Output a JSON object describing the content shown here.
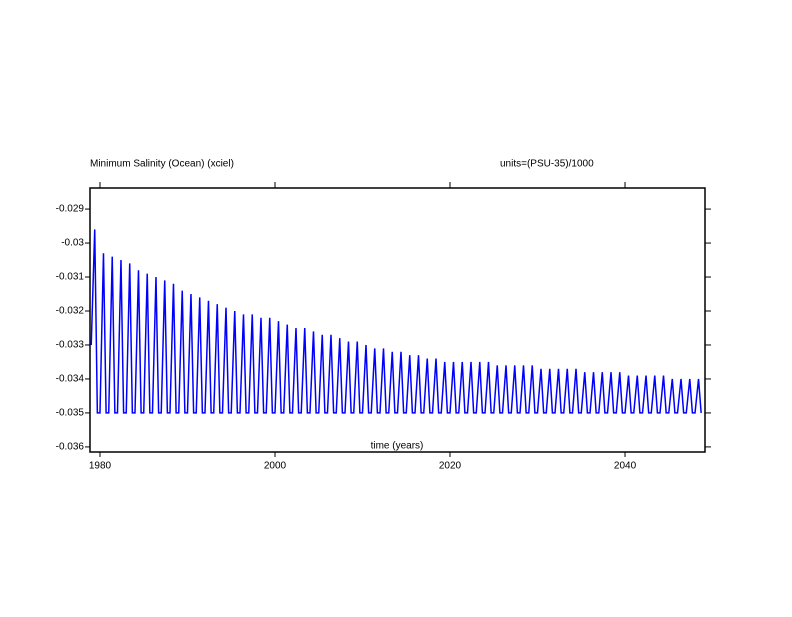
{
  "chart_data": {
    "type": "line",
    "title": "Minimum Salinity (Ocean) (xciel)",
    "subtitle": "units=(PSU-35)/1000",
    "x_label": "time (years)",
    "xlim": [
      1978.86,
      2049.14
    ],
    "xticks": [
      1980,
      2000,
      2020,
      2040
    ],
    "ylim": [
      -0.03615,
      -0.02838
    ],
    "yticks": [
      -0.029,
      -0.03,
      -0.031,
      -0.032,
      -0.033,
      -0.034,
      -0.035,
      -0.036
    ],
    "x": [
      1979,
      1979.4,
      1979.7,
      1980,
      1980.4,
      1980.7,
      1981,
      1981.4,
      1981.7,
      1982,
      1982.4,
      1982.7,
      1983,
      1983.4,
      1983.7,
      1984,
      1984.4,
      1984.7,
      1985,
      1985.4,
      1985.7,
      1986,
      1986.4,
      1986.7,
      1987,
      1987.4,
      1987.7,
      1988,
      1988.4,
      1988.7,
      1989,
      1989.4,
      1989.7,
      1990,
      1990.4,
      1990.7,
      1991,
      1991.4,
      1991.7,
      1992,
      1992.4,
      1992.7,
      1993,
      1993.4,
      1993.7,
      1994,
      1994.4,
      1994.7,
      1995,
      1995.4,
      1995.7,
      1996,
      1996.4,
      1996.7,
      1997,
      1997.4,
      1997.7,
      1998,
      1998.4,
      1998.7,
      1999,
      1999.4,
      1999.7,
      2000,
      2000.4,
      2000.7,
      2001,
      2001.4,
      2001.7,
      2002,
      2002.4,
      2002.7,
      2003,
      2003.4,
      2003.7,
      2004,
      2004.4,
      2004.7,
      2005,
      2005.4,
      2005.7,
      2006,
      2006.4,
      2006.7,
      2007,
      2007.4,
      2007.7,
      2008,
      2008.4,
      2008.7,
      2009,
      2009.4,
      2009.7,
      2010,
      2010.4,
      2010.7,
      2011,
      2011.4,
      2011.7,
      2012,
      2012.4,
      2012.7,
      2013,
      2013.4,
      2013.7,
      2014,
      2014.4,
      2014.7,
      2015,
      2015.4,
      2015.7,
      2016,
      2016.4,
      2016.7,
      2017,
      2017.4,
      2017.7,
      2018,
      2018.4,
      2018.7,
      2019,
      2019.4,
      2019.7,
      2020,
      2020.4,
      2020.7,
      2021,
      2021.4,
      2021.7,
      2022,
      2022.4,
      2022.7,
      2023,
      2023.4,
      2023.7,
      2024,
      2024.4,
      2024.7,
      2025,
      2025.4,
      2025.7,
      2026,
      2026.4,
      2026.7,
      2027,
      2027.4,
      2027.7,
      2028,
      2028.4,
      2028.7,
      2029,
      2029.4,
      2029.7,
      2030,
      2030.4,
      2030.7,
      2031,
      2031.4,
      2031.7,
      2032,
      2032.4,
      2032.7,
      2033,
      2033.4,
      2033.7,
      2034,
      2034.4,
      2034.7,
      2035,
      2035.4,
      2035.7,
      2036,
      2036.4,
      2036.7,
      2037,
      2037.4,
      2037.7,
      2038,
      2038.4,
      2038.7,
      2039,
      2039.4,
      2039.7,
      2040,
      2040.4,
      2040.7,
      2041,
      2041.4,
      2041.7,
      2042,
      2042.4,
      2042.7,
      2043,
      2043.4,
      2043.7,
      2044,
      2044.4,
      2044.7,
      2045,
      2045.4,
      2045.7,
      2046,
      2046.4,
      2046.7,
      2047,
      2047.4,
      2047.7,
      2048,
      2048.4,
      2048.7
    ],
    "series": [
      {
        "color": "#0000ff",
        "values": [
          -0.033,
          -0.0296,
          -0.035,
          -0.035,
          -0.0303,
          -0.035,
          -0.035,
          -0.0304,
          -0.035,
          -0.035,
          -0.0305,
          -0.035,
          -0.035,
          -0.0306,
          -0.035,
          -0.035,
          -0.0308,
          -0.035,
          -0.035,
          -0.0309,
          -0.035,
          -0.035,
          -0.031,
          -0.035,
          -0.035,
          -0.0311,
          -0.035,
          -0.035,
          -0.0312,
          -0.035,
          -0.035,
          -0.0314,
          -0.035,
          -0.035,
          -0.0315,
          -0.035,
          -0.035,
          -0.0316,
          -0.035,
          -0.035,
          -0.0317,
          -0.035,
          -0.035,
          -0.0318,
          -0.035,
          -0.035,
          -0.0319,
          -0.035,
          -0.035,
          -0.032,
          -0.035,
          -0.035,
          -0.0321,
          -0.035,
          -0.035,
          -0.0321,
          -0.035,
          -0.035,
          -0.0322,
          -0.035,
          -0.035,
          -0.0322,
          -0.035,
          -0.035,
          -0.0323,
          -0.035,
          -0.035,
          -0.0324,
          -0.035,
          -0.035,
          -0.0325,
          -0.035,
          -0.035,
          -0.0325,
          -0.035,
          -0.035,
          -0.0326,
          -0.035,
          -0.035,
          -0.0327,
          -0.035,
          -0.035,
          -0.0327,
          -0.035,
          -0.035,
          -0.0328,
          -0.035,
          -0.035,
          -0.0329,
          -0.035,
          -0.035,
          -0.0329,
          -0.035,
          -0.035,
          -0.033,
          -0.035,
          -0.035,
          -0.0331,
          -0.035,
          -0.035,
          -0.0331,
          -0.035,
          -0.035,
          -0.0332,
          -0.035,
          -0.035,
          -0.0332,
          -0.035,
          -0.035,
          -0.0333,
          -0.035,
          -0.035,
          -0.0333,
          -0.035,
          -0.035,
          -0.0334,
          -0.035,
          -0.035,
          -0.0334,
          -0.035,
          -0.035,
          -0.0335,
          -0.035,
          -0.035,
          -0.0335,
          -0.035,
          -0.035,
          -0.0335,
          -0.035,
          -0.035,
          -0.0335,
          -0.035,
          -0.035,
          -0.0335,
          -0.035,
          -0.035,
          -0.0335,
          -0.035,
          -0.035,
          -0.0336,
          -0.035,
          -0.035,
          -0.0336,
          -0.035,
          -0.035,
          -0.0336,
          -0.035,
          -0.035,
          -0.0336,
          -0.035,
          -0.035,
          -0.0336,
          -0.035,
          -0.035,
          -0.0337,
          -0.035,
          -0.035,
          -0.0337,
          -0.035,
          -0.035,
          -0.0337,
          -0.035,
          -0.035,
          -0.0337,
          -0.035,
          -0.035,
          -0.0337,
          -0.035,
          -0.035,
          -0.0338,
          -0.035,
          -0.035,
          -0.0338,
          -0.035,
          -0.035,
          -0.0338,
          -0.035,
          -0.035,
          -0.0338,
          -0.035,
          -0.035,
          -0.0338,
          -0.035,
          -0.035,
          -0.0339,
          -0.035,
          -0.035,
          -0.0339,
          -0.035,
          -0.035,
          -0.0339,
          -0.035,
          -0.035,
          -0.0339,
          -0.035,
          -0.035,
          -0.0339,
          -0.035,
          -0.035,
          -0.034,
          -0.035,
          -0.035,
          -0.034,
          -0.035,
          -0.035,
          -0.034,
          -0.035,
          -0.035,
          -0.034,
          -0.035
        ]
      }
    ]
  }
}
